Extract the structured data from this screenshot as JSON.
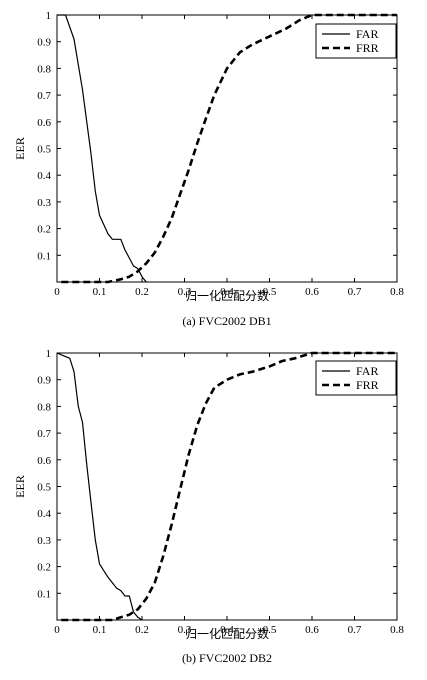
{
  "chart_data": [
    {
      "type": "line",
      "caption": "(a) FVC2002 DB1",
      "xlabel": "归一化匹配分数",
      "ylabel": "EER",
      "xlim": [
        0,
        0.8
      ],
      "ylim": [
        0,
        1
      ],
      "xticks": [
        "0",
        "0.1",
        "0.2",
        "0.3",
        "0.4",
        "0.5",
        "0.6",
        "0.7",
        "0.8"
      ],
      "yticks": [
        "0.1",
        "0.2",
        "0.3",
        "0.4",
        "0.5",
        "0.6",
        "0.7",
        "0.8",
        "0.9",
        "1"
      ],
      "grid": false,
      "legend_position": "top-right",
      "series": [
        {
          "name": "FAR",
          "style": "solid",
          "color": "#000000",
          "x": [
            0,
            0.02,
            0.04,
            0.06,
            0.08,
            0.09,
            0.1,
            0.12,
            0.13,
            0.15,
            0.16,
            0.17,
            0.18,
            0.19,
            0.2,
            0.21
          ],
          "y": [
            1,
            1,
            0.91,
            0.72,
            0.48,
            0.34,
            0.25,
            0.18,
            0.16,
            0.16,
            0.12,
            0.09,
            0.06,
            0.05,
            0.02,
            0
          ]
        },
        {
          "name": "FRR",
          "style": "dashed",
          "color": "#000000",
          "x": [
            0.01,
            0.12,
            0.15,
            0.17,
            0.19,
            0.21,
            0.23,
            0.25,
            0.27,
            0.29,
            0.31,
            0.33,
            0.35,
            0.37,
            0.4,
            0.43,
            0.46,
            0.5,
            0.54,
            0.57,
            0.6,
            0.65,
            0.7,
            0.8
          ],
          "y": [
            0,
            0,
            0.01,
            0.02,
            0.04,
            0.07,
            0.11,
            0.17,
            0.24,
            0.33,
            0.42,
            0.52,
            0.61,
            0.7,
            0.8,
            0.86,
            0.89,
            0.92,
            0.95,
            0.98,
            1,
            1,
            1,
            1
          ]
        }
      ]
    },
    {
      "type": "line",
      "caption": "(b) FVC2002 DB2",
      "xlabel": "归一化匹配分数",
      "ylabel": "EER",
      "xlim": [
        0,
        0.8
      ],
      "ylim": [
        0,
        1
      ],
      "xticks": [
        "0",
        "0.1",
        "0.2",
        "0.3",
        "0.4",
        "0.5",
        "0.6",
        "0.7",
        "0.8"
      ],
      "yticks": [
        "0.1",
        "0.2",
        "0.3",
        "0.4",
        "0.5",
        "0.6",
        "0.7",
        "0.8",
        "0.9",
        "1"
      ],
      "grid": false,
      "legend_position": "top-right",
      "series": [
        {
          "name": "FAR",
          "style": "solid",
          "color": "#000000",
          "x": [
            0,
            0.015,
            0.03,
            0.04,
            0.05,
            0.06,
            0.07,
            0.08,
            0.09,
            0.1,
            0.12,
            0.14,
            0.15,
            0.16,
            0.17,
            0.18,
            0.19,
            0.2
          ],
          "y": [
            1,
            0.99,
            0.98,
            0.93,
            0.8,
            0.74,
            0.58,
            0.44,
            0.3,
            0.21,
            0.16,
            0.12,
            0.11,
            0.09,
            0.09,
            0.03,
            0.01,
            0
          ]
        },
        {
          "name": "FRR",
          "style": "dashed",
          "color": "#000000",
          "x": [
            0.01,
            0.13,
            0.15,
            0.17,
            0.19,
            0.21,
            0.23,
            0.25,
            0.27,
            0.29,
            0.31,
            0.33,
            0.35,
            0.37,
            0.4,
            0.43,
            0.46,
            0.5,
            0.53,
            0.56,
            0.6,
            0.65,
            0.7,
            0.8
          ],
          "y": [
            0,
            0,
            0.01,
            0.02,
            0.04,
            0.08,
            0.14,
            0.24,
            0.36,
            0.49,
            0.62,
            0.73,
            0.81,
            0.87,
            0.9,
            0.92,
            0.93,
            0.95,
            0.97,
            0.98,
            1,
            1,
            1,
            1
          ]
        }
      ]
    }
  ]
}
